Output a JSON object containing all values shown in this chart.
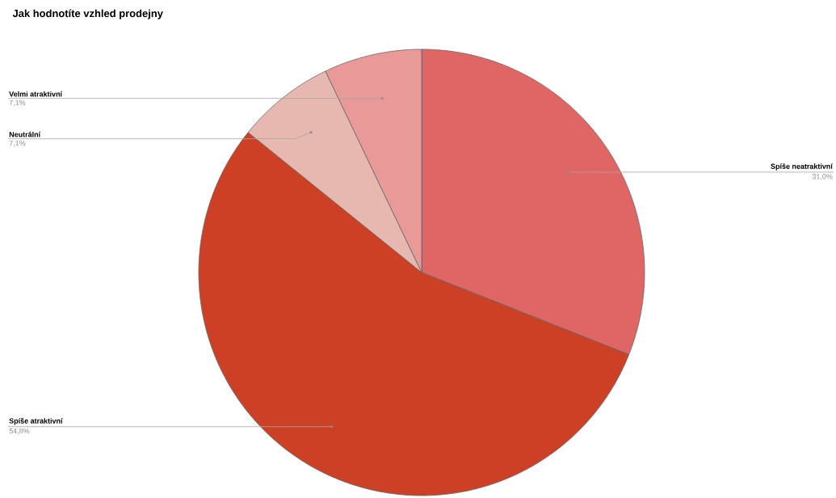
{
  "chart_data": {
    "type": "pie",
    "title": "Jak hodnotíte vzhled prodejny",
    "categories": [
      "Spíše neatraktivní",
      "Spíše atraktivní",
      "Neutrální",
      "Velmi atraktivní"
    ],
    "values": [
      31.0,
      54.8,
      7.1,
      7.1
    ],
    "colors": [
      "#e06666",
      "#cc4125",
      "#e6b8af",
      "#ea9999"
    ],
    "value_labels": [
      "31,0%",
      "54,8%",
      "7,1%",
      "7,1%"
    ]
  }
}
